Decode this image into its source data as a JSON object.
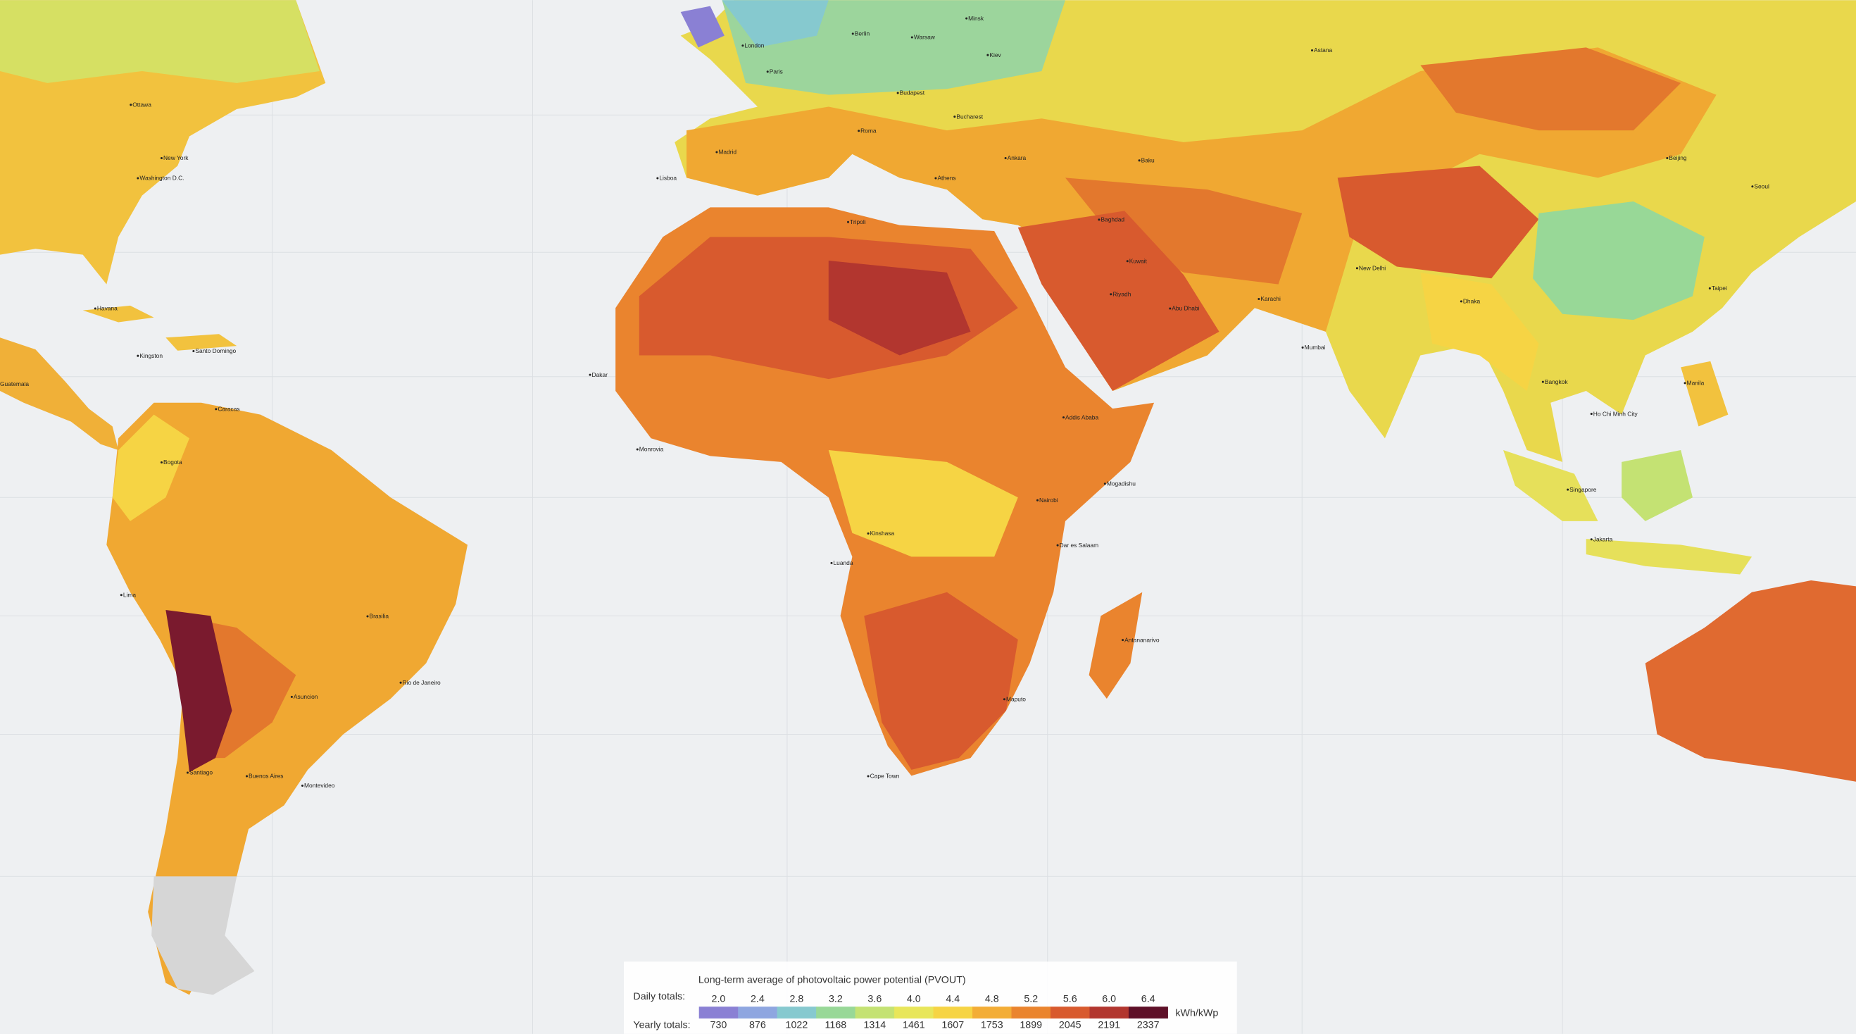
{
  "map": {
    "cities": [
      "London",
      "Paris",
      "Berlin",
      "Warsaw",
      "Minsk",
      "Kiev",
      "Budapest",
      "Bucharest",
      "Madrid",
      "Lisboa",
      "Roma",
      "Athens",
      "Ankara",
      "Baku",
      "Baghdad",
      "Kuwait",
      "Riyadh",
      "Abu Dhabi",
      "Karachi",
      "New Delhi",
      "Mumbai",
      "Dhaka",
      "Bangkok",
      "Ho Chi Minh City",
      "Manila",
      "Singapore",
      "Jakarta",
      "Beijing",
      "Seoul",
      "Taipei",
      "Astana",
      "Washington D.C.",
      "New York",
      "Ottawa",
      "Havana",
      "Santo Domingo",
      "Kingston",
      "Caracas",
      "Bogota",
      "Lima",
      "Santiago",
      "Buenos Aires",
      "Montevideo",
      "Brasilia",
      "Rio de Janeiro",
      "Asuncion",
      "Dakar",
      "Tripoli",
      "Luanda",
      "Kinshasa",
      "Nairobi",
      "Dar es Salaam",
      "Mogadishu",
      "Addis Ababa",
      "Maputo",
      "Cape Town",
      "Antananarivo",
      "Monrovia",
      "Guatemala"
    ]
  },
  "legend": {
    "title": "Long-term average of photovoltaic power potential (PVOUT)",
    "daily_label": "Daily totals:",
    "yearly_label": "Yearly totals:",
    "unit": "kWh/kWp",
    "daily_totals": [
      "2.0",
      "2.4",
      "2.8",
      "3.2",
      "3.6",
      "4.0",
      "4.4",
      "4.8",
      "5.2",
      "5.6",
      "6.0",
      "6.4"
    ],
    "yearly_totals": [
      730,
      876,
      1022,
      1168,
      1314,
      1461,
      1607,
      1753,
      1899,
      2045,
      2191,
      2337
    ],
    "colors": [
      "#8a80d4",
      "#8ea6e0",
      "#86c9cf",
      "#98d897",
      "#c4e273",
      "#e8e65a",
      "#f6d444",
      "#f3ad36",
      "#ea842e",
      "#d85a2e",
      "#b2362f",
      "#5e1028"
    ]
  }
}
